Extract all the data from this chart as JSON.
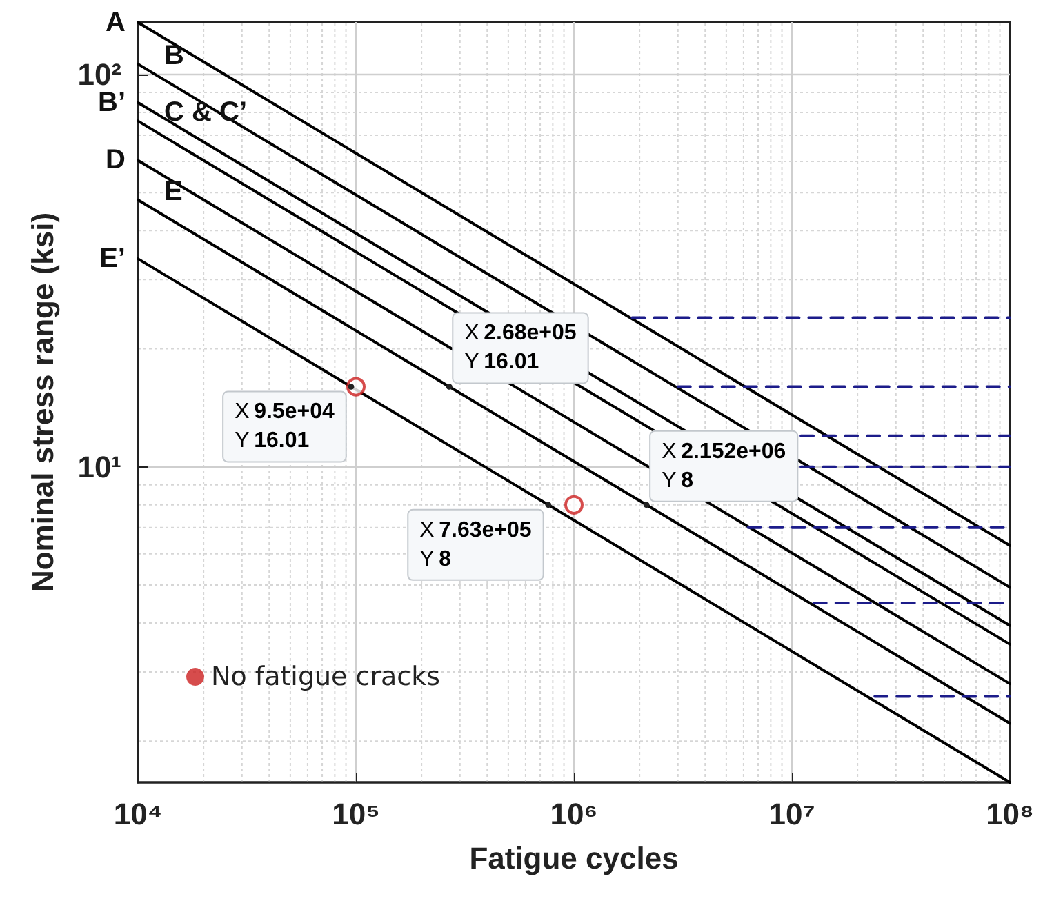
{
  "chart_data": {
    "type": "line",
    "xlabel": "Fatigue cycles",
    "ylabel": "Nominal stress range (ksi)",
    "log": "xy",
    "grid": true,
    "legend": "bottom left",
    "line_style": "solid",
    "xlim": [
      10000,
      100000000
    ],
    "ylim": [
      1.57,
      136
    ],
    "xticks": [
      {
        "value": 10000,
        "label": "10⁴"
      },
      {
        "value": 100000,
        "label": "10⁵"
      },
      {
        "value": 1000000,
        "label": "10⁶"
      },
      {
        "value": 10000000,
        "label": "10⁷"
      },
      {
        "value": 100000000,
        "label": "10⁸"
      }
    ],
    "yticks": [
      {
        "value": 10,
        "label": "10¹"
      },
      {
        "value": 100,
        "label": "10²"
      }
    ],
    "series": [
      {
        "name": "A",
        "color": "#000000",
        "x": [
          10000,
          100000000
        ],
        "values": [
          135.7,
          6.3
        ]
      },
      {
        "name": "B",
        "color": "#000000",
        "x": [
          10000,
          100000000
        ],
        "values": [
          106.3,
          4.93
        ]
      },
      {
        "name": "B’",
        "color": "#000000",
        "x": [
          10000,
          100000000
        ],
        "values": [
          84.8,
          3.94
        ]
      },
      {
        "name": "C & C’",
        "color": "#000000",
        "x": [
          10000,
          100000000
        ],
        "values": [
          76.1,
          3.53
        ]
      },
      {
        "name": "D",
        "color": "#000000",
        "x": [
          10000,
          100000000
        ],
        "values": [
          60.4,
          2.8
        ]
      },
      {
        "name": "E",
        "color": "#000000",
        "x": [
          10000,
          268000,
          2152000,
          100000000
        ],
        "values": [
          47.9,
          16.01,
          8,
          2.22
        ]
      },
      {
        "name": "E’",
        "color": "#000000",
        "x": [
          10000,
          95000,
          763000,
          100000000
        ],
        "values": [
          33.9,
          16.01,
          8,
          1.57
        ]
      },
      {
        "color": "#1c1c8a",
        "line_style": "dashed",
        "x": [
          1850000,
          100000000
        ],
        "values": [
          24,
          24
        ]
      },
      {
        "color": "#1c1c8a",
        "line_style": "dashed",
        "x": [
          3000000,
          100000000
        ],
        "values": [
          16,
          16
        ]
      },
      {
        "color": "#1c1c8a",
        "line_style": "dashed",
        "x": [
          11000000,
          100000000
        ],
        "values": [
          12,
          12
        ]
      },
      {
        "color": "#1c1c8a",
        "line_style": "dashed",
        "x": [
          11000000,
          100000000
        ],
        "values": [
          10,
          10
        ]
      },
      {
        "color": "#1c1c8a",
        "line_style": "dashed",
        "x": [
          6300000,
          100000000
        ],
        "values": [
          7,
          7
        ]
      },
      {
        "color": "#1c1c8a",
        "line_style": "dashed",
        "x": [
          12600000,
          100000000
        ],
        "values": [
          4.5,
          4.5
        ]
      },
      {
        "color": "#1c1c8a",
        "line_style": "dashed",
        "x": [
          24000000,
          100000000
        ],
        "values": [
          2.6,
          2.6
        ]
      },
      {
        "name": "No fatigue cracks",
        "type": "scatter",
        "marker": "circle",
        "color": "#cc1f1f",
        "x": [
          100000,
          1000000
        ],
        "values": [
          16,
          8
        ]
      }
    ],
    "annotations": [
      {
        "text": "X 9.5e+04\nY 16.01",
        "x": 95000,
        "y": 16.01
      },
      {
        "text": "X 2.68e+05\nY 16.01",
        "x": 268000,
        "y": 16.01
      },
      {
        "text": "X 7.63e+05\nY 8",
        "x": 763000,
        "y": 8
      },
      {
        "text": "X 2.152e+06\nY 8",
        "x": 2152000,
        "y": 8
      }
    ]
  }
}
